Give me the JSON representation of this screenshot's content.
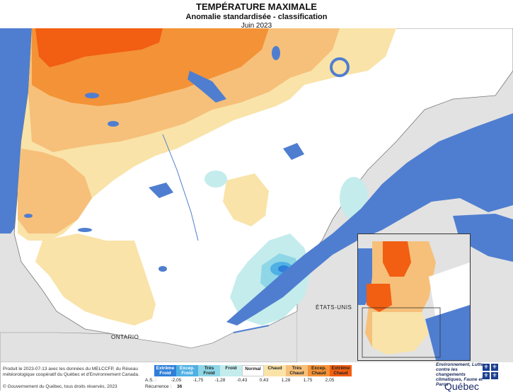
{
  "header": {
    "title": "TEMPÉRATURE MAXIMALE",
    "subtitle": "Anomalie standardisée - classification",
    "date": "Juin 2023"
  },
  "map_labels": {
    "etats_unis": "ÉTATS-UNIS",
    "ontario": "ONTARIO"
  },
  "legend": {
    "classes": [
      {
        "label": "Extrême Froid",
        "color": "#2f7fd8",
        "text_style": "dark"
      },
      {
        "label": "Excep. Froid",
        "color": "#4fb0e4",
        "text_style": "dark"
      },
      {
        "label": "Très Froid",
        "color": "#8fd6e6",
        "text_style": "light"
      },
      {
        "label": "Froid",
        "color": "#c4ecec",
        "text_style": "light"
      },
      {
        "label": "Normal",
        "color": "#ffffff",
        "text_style": "light"
      },
      {
        "label": "Chaud",
        "color": "#f9e3a8",
        "text_style": "light"
      },
      {
        "label": "Très Chaud",
        "color": "#f6c07a",
        "text_style": "light"
      },
      {
        "label": "Excep. Chaud",
        "color": "#f39236",
        "text_style": "light"
      },
      {
        "label": "Extrême Chaud",
        "color": "#f25e12",
        "text_style": "light"
      }
    ],
    "thresholds": [
      "-2,05",
      "-1,75",
      "-1,28",
      "-0,43",
      "0,43",
      "1,28",
      "1,75",
      "2,05"
    ],
    "as_label": "A.S. :",
    "recurrence_label": "Récurrence :",
    "recurrence_value": "36"
  },
  "credits": {
    "product": "Produit le 2023-07-13 avec les données du MELCCFP, du Réseau météorologique coopératif du Québec et d'Environnement Canada.",
    "gov": "© Gouvernement du Québec, tous droits réservés, 2023"
  },
  "logo": {
    "ministry": "Environnement, Lutte contre les changements climatiques, Faune et Parcs",
    "name": "Québec"
  },
  "colors": {
    "water": "#4f7ed0",
    "land_outside": "#e2e2e2",
    "border": "#888888"
  }
}
